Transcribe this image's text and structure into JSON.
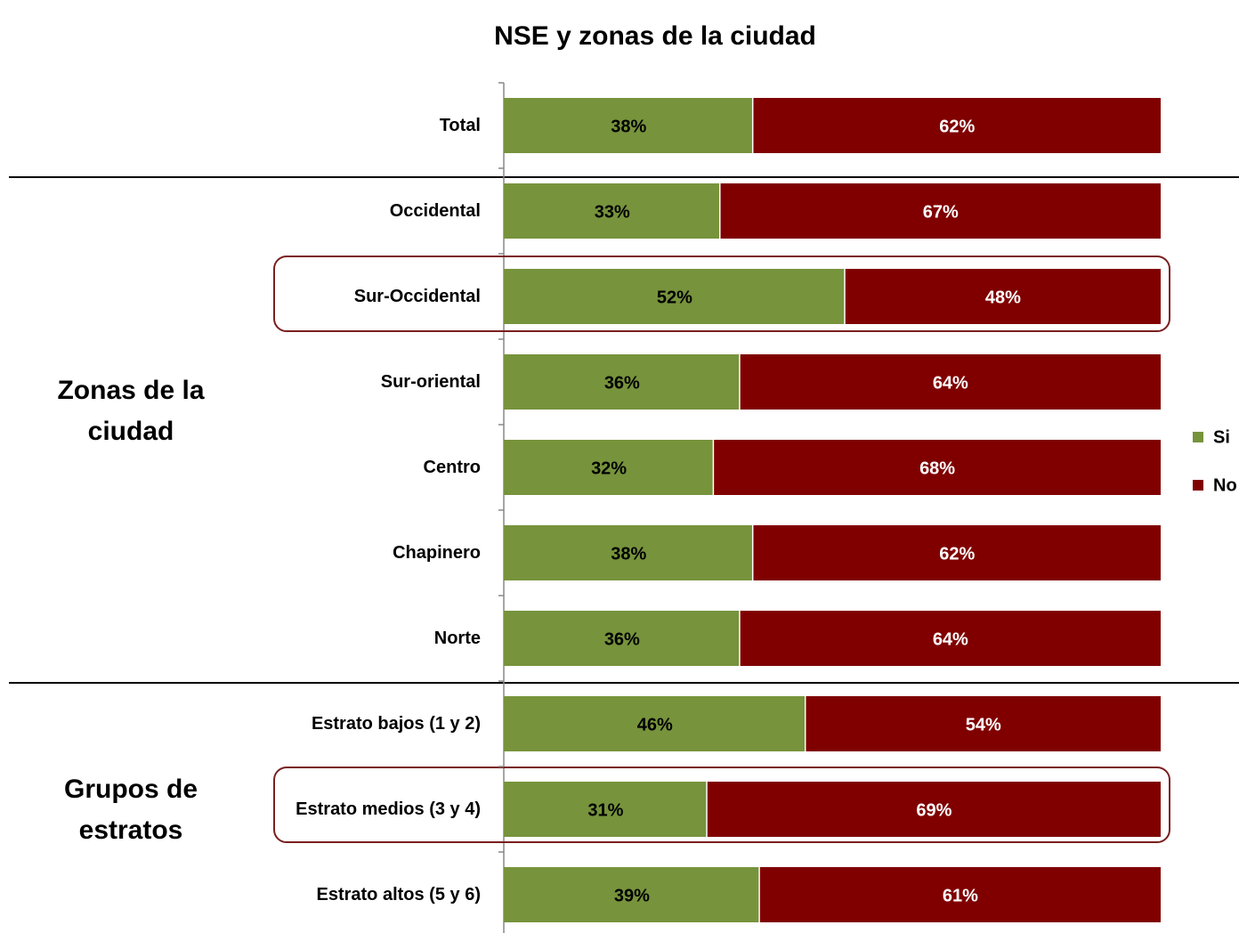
{
  "chart_data": {
    "type": "stacked-bar-horizontal-100",
    "title": "NSE y zonas de la ciudad",
    "categories": [
      "Total",
      "Occidental",
      "Sur-Occidental",
      "Sur-oriental",
      "Centro",
      "Chapinero",
      "Norte",
      "Estrato bajos (1 y 2)",
      "Estrato medios (3 y 4)",
      "Estrato altos (5 y 6)"
    ],
    "group_labels": [
      "Zonas de la ciudad",
      "Grupos de estratos"
    ],
    "series": [
      {
        "name": "Si",
        "color": "#77933c",
        "values": [
          38,
          33,
          52,
          36,
          32,
          38,
          36,
          46,
          31,
          39
        ],
        "value_labels": [
          "38%",
          "33%",
          "52%",
          "36%",
          "32%",
          "38%",
          "36%",
          "46%",
          "31%",
          "39%"
        ]
      },
      {
        "name": "No",
        "color": "#800000",
        "values": [
          62,
          67,
          48,
          64,
          68,
          62,
          64,
          54,
          69,
          61
        ],
        "value_labels": [
          "62%",
          "67%",
          "48%",
          "64%",
          "68%",
          "62%",
          "64%",
          "54%",
          "69%",
          "61%"
        ]
      }
    ],
    "xlim": [
      0,
      100
    ]
  }
}
